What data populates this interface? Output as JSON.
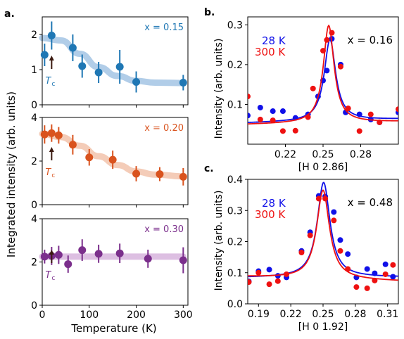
{
  "panel_labels": {
    "a": "a.",
    "b": "b.",
    "c": "c."
  },
  "shared": {
    "a_xlabel": "Temperature (K)",
    "a_ylabel": "Integrated intensity (arb. units)",
    "tc_label": "T",
    "tc_sub": "c",
    "ylabel_bc": "Intensity (arb. units)"
  },
  "colors": {
    "blue_a": "#1f77b4",
    "orange_a": "#d9531e",
    "purple_a": "#7b2f8c",
    "blue_band": "#a9c8e6",
    "orange_band": "#f3c7b0",
    "purple_band": "#d9b8df",
    "cold": "#1010e8",
    "warm": "#ee1111",
    "arrow": "#3b1a10"
  },
  "chart_data": [
    {
      "id": "a1",
      "type": "scatter",
      "label": "x = 0.15",
      "color_key": "blue_a",
      "xlim": [
        0,
        310
      ],
      "ylim": [
        0,
        2.5
      ],
      "yticks": [
        0,
        1,
        2
      ],
      "tc_x": 20,
      "points": [
        {
          "x": 5,
          "y": 1.42,
          "err": 0.32
        },
        {
          "x": 20,
          "y": 1.97,
          "err": 0.4
        },
        {
          "x": 65,
          "y": 1.62,
          "err": 0.38
        },
        {
          "x": 85,
          "y": 1.1,
          "err": 0.33
        },
        {
          "x": 120,
          "y": 0.92,
          "err": 0.3
        },
        {
          "x": 165,
          "y": 1.08,
          "err": 0.48
        },
        {
          "x": 200,
          "y": 0.65,
          "err": 0.3
        },
        {
          "x": 300,
          "y": 0.63,
          "err": 0.22
        }
      ],
      "band": [
        [
          0,
          1.9
        ],
        [
          40,
          1.83
        ],
        [
          80,
          1.45
        ],
        [
          120,
          1.07
        ],
        [
          160,
          0.82
        ],
        [
          200,
          0.68
        ],
        [
          240,
          0.63
        ],
        [
          300,
          0.62
        ]
      ]
    },
    {
      "id": "a2",
      "type": "scatter",
      "label": "x = 0.20",
      "color_key": "orange_a",
      "xlim": [
        0,
        310
      ],
      "ylim": [
        0,
        4
      ],
      "yticks": [
        0,
        2,
        4
      ],
      "tc_x": 20,
      "points": [
        {
          "x": 5,
          "y": 3.22,
          "err": 0.42
        },
        {
          "x": 20,
          "y": 3.28,
          "err": 0.4
        },
        {
          "x": 35,
          "y": 3.18,
          "err": 0.38
        },
        {
          "x": 65,
          "y": 2.75,
          "err": 0.45
        },
        {
          "x": 100,
          "y": 2.17,
          "err": 0.38
        },
        {
          "x": 150,
          "y": 2.06,
          "err": 0.42
        },
        {
          "x": 200,
          "y": 1.42,
          "err": 0.35
        },
        {
          "x": 250,
          "y": 1.4,
          "err": 0.32
        },
        {
          "x": 300,
          "y": 1.28,
          "err": 0.4
        }
      ],
      "band": [
        [
          0,
          3.25
        ],
        [
          40,
          3.1
        ],
        [
          80,
          2.7
        ],
        [
          120,
          2.22
        ],
        [
          160,
          1.82
        ],
        [
          200,
          1.52
        ],
        [
          240,
          1.38
        ],
        [
          300,
          1.3
        ]
      ]
    },
    {
      "id": "a3",
      "type": "scatter",
      "label": "x = 0.30",
      "color_key": "purple_a",
      "xlim": [
        0,
        310
      ],
      "ylim": [
        0,
        4
      ],
      "yticks": [
        0,
        2,
        4
      ],
      "xticks": [
        0,
        100,
        200,
        300
      ],
      "tc_x": 20,
      "points": [
        {
          "x": 5,
          "y": 2.25,
          "err": 0.32
        },
        {
          "x": 20,
          "y": 2.28,
          "err": 0.42
        },
        {
          "x": 35,
          "y": 2.33,
          "err": 0.42
        },
        {
          "x": 55,
          "y": 1.9,
          "err": 0.4
        },
        {
          "x": 85,
          "y": 2.55,
          "err": 0.5
        },
        {
          "x": 120,
          "y": 2.38,
          "err": 0.42
        },
        {
          "x": 165,
          "y": 2.4,
          "err": 0.45
        },
        {
          "x": 225,
          "y": 2.15,
          "err": 0.42
        },
        {
          "x": 300,
          "y": 2.08,
          "err": 0.6
        }
      ],
      "band": [
        [
          0,
          2.25
        ],
        [
          300,
          2.25
        ]
      ]
    },
    {
      "id": "b",
      "type": "line",
      "label": "x = 0.16",
      "xlabel": "[H 0 2.86]",
      "xlim": [
        0.19,
        0.31
      ],
      "ylim": [
        0.0,
        0.32
      ],
      "xticks": [
        0.22,
        0.25,
        0.28
      ],
      "yticks": [
        0.1,
        0.2,
        0.3
      ],
      "series": [
        {
          "name": "28 K",
          "color_key": "cold",
          "points": [
            [
              0.19,
              0.072
            ],
            [
              0.2,
              0.092
            ],
            [
              0.21,
              0.083
            ],
            [
              0.218,
              0.083
            ],
            [
              0.228,
              0.066
            ],
            [
              0.238,
              0.075
            ],
            [
              0.246,
              0.12
            ],
            [
              0.25,
              0.16
            ],
            [
              0.253,
              0.185
            ],
            [
              0.257,
              0.265
            ],
            [
              0.264,
              0.2
            ],
            [
              0.268,
              0.08
            ],
            [
              0.279,
              0.075
            ],
            [
              0.288,
              0.062
            ],
            [
              0.295,
              0.055
            ],
            [
              0.31,
              0.08
            ]
          ],
          "fit": {
            "x0": 0.2555,
            "gamma": 0.0055,
            "amp": 0.205,
            "base": 0.058,
            "slope": 0.08
          }
        },
        {
          "name": "300 K",
          "color_key": "warm",
          "points": [
            [
              0.19,
              0.12
            ],
            [
              0.2,
              0.062
            ],
            [
              0.21,
              0.06
            ],
            [
              0.218,
              0.033
            ],
            [
              0.228,
              0.034
            ],
            [
              0.238,
              0.068
            ],
            [
              0.242,
              0.14
            ],
            [
              0.25,
              0.235
            ],
            [
              0.253,
              0.262
            ],
            [
              0.257,
              0.28
            ],
            [
              0.264,
              0.195
            ],
            [
              0.27,
              0.09
            ],
            [
              0.279,
              0.033
            ],
            [
              0.288,
              0.075
            ],
            [
              0.295,
              0.055
            ],
            [
              0.31,
              0.088
            ]
          ],
          "fit": {
            "x0": 0.2545,
            "gamma": 0.0052,
            "amp": 0.245,
            "base": 0.053,
            "slope": 0.06
          }
        }
      ]
    },
    {
      "id": "c",
      "type": "line",
      "label": "x = 0.48",
      "xlabel": "[H 0 1.92]",
      "xlim": [
        0.18,
        0.32
      ],
      "ylim": [
        0.0,
        0.4
      ],
      "xticks": [
        0.19,
        0.22,
        0.25,
        0.28,
        0.31
      ],
      "xtick_labels": [
        "0.19",
        "0.22",
        "0.25",
        "0.28",
        "0.31"
      ],
      "yticks": [
        0.0,
        0.1,
        0.2,
        0.3,
        0.4
      ],
      "series": [
        {
          "name": "28 K",
          "color_key": "cold",
          "points": [
            [
              0.181,
              0.072
            ],
            [
              0.19,
              0.105
            ],
            [
              0.2,
              0.11
            ],
            [
              0.208,
              0.09
            ],
            [
              0.216,
              0.085
            ],
            [
              0.23,
              0.17
            ],
            [
              0.238,
              0.23
            ],
            [
              0.246,
              0.347
            ],
            [
              0.252,
              0.345
            ],
            [
              0.26,
              0.295
            ],
            [
              0.266,
              0.205
            ],
            [
              0.273,
              0.16
            ],
            [
              0.281,
              0.085
            ],
            [
              0.291,
              0.112
            ],
            [
              0.298,
              0.098
            ],
            [
              0.308,
              0.127
            ],
            [
              0.315,
              0.087
            ]
          ],
          "fit": {
            "x0": 0.2505,
            "gamma": 0.0072,
            "amp": 0.305,
            "base": 0.085,
            "slope": 0.01
          }
        },
        {
          "name": "300 K",
          "color_key": "warm",
          "points": [
            [
              0.181,
              0.07
            ],
            [
              0.19,
              0.1
            ],
            [
              0.2,
              0.063
            ],
            [
              0.208,
              0.073
            ],
            [
              0.216,
              0.095
            ],
            [
              0.23,
              0.165
            ],
            [
              0.238,
              0.22
            ],
            [
              0.246,
              0.338
            ],
            [
              0.252,
              0.338
            ],
            [
              0.26,
              0.268
            ],
            [
              0.266,
              0.17
            ],
            [
              0.273,
              0.112
            ],
            [
              0.281,
              0.054
            ],
            [
              0.291,
              0.05
            ],
            [
              0.298,
              0.075
            ],
            [
              0.308,
              0.095
            ],
            [
              0.315,
              0.125
            ]
          ],
          "fit": {
            "x0": 0.25,
            "gamma": 0.0072,
            "amp": 0.285,
            "base": 0.08,
            "slope": -0.1
          }
        }
      ]
    }
  ]
}
